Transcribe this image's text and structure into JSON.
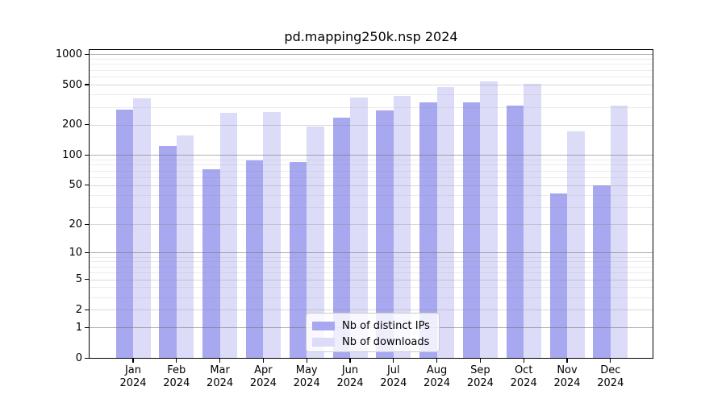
{
  "chart_data": {
    "type": "bar",
    "title": "pd.mapping250k.nsp 2024",
    "xlabel": "",
    "ylabel": "",
    "x_labels": [
      {
        "month": "Jan",
        "year": "2024"
      },
      {
        "month": "Feb",
        "year": "2024"
      },
      {
        "month": "Mar",
        "year": "2024"
      },
      {
        "month": "Apr",
        "year": "2024"
      },
      {
        "month": "May",
        "year": "2024"
      },
      {
        "month": "Jun",
        "year": "2024"
      },
      {
        "month": "Jul",
        "year": "2024"
      },
      {
        "month": "Aug",
        "year": "2024"
      },
      {
        "month": "Sep",
        "year": "2024"
      },
      {
        "month": "Oct",
        "year": "2024"
      },
      {
        "month": "Nov",
        "year": "2024"
      },
      {
        "month": "Dec",
        "year": "2024"
      }
    ],
    "series": [
      {
        "name": "Nb of distinct IPs",
        "color": "#a8a8f0",
        "values": [
          285,
          123,
          72,
          88,
          85,
          235,
          276,
          335,
          335,
          310,
          41,
          50
        ]
      },
      {
        "name": "Nb of downloads",
        "color": "#dcdcf8",
        "values": [
          365,
          157,
          263,
          268,
          193,
          375,
          390,
          475,
          540,
          510,
          173,
          310
        ]
      }
    ],
    "y_axis": {
      "scale": "log1p",
      "ticks": [
        0,
        1,
        2,
        5,
        10,
        20,
        50,
        100,
        200,
        500,
        1000
      ],
      "mid_gridlines": [
        2,
        5,
        20,
        50,
        200,
        500
      ],
      "major_gridlines": [
        1,
        10,
        100,
        1000
      ],
      "minor_gridlines": [
        3,
        4,
        6,
        7,
        8,
        9,
        30,
        40,
        60,
        70,
        80,
        90,
        300,
        400,
        600,
        700,
        800,
        900
      ],
      "ylim": [
        0,
        1130
      ]
    },
    "grid": "on",
    "legend_position": "bottom-center"
  }
}
